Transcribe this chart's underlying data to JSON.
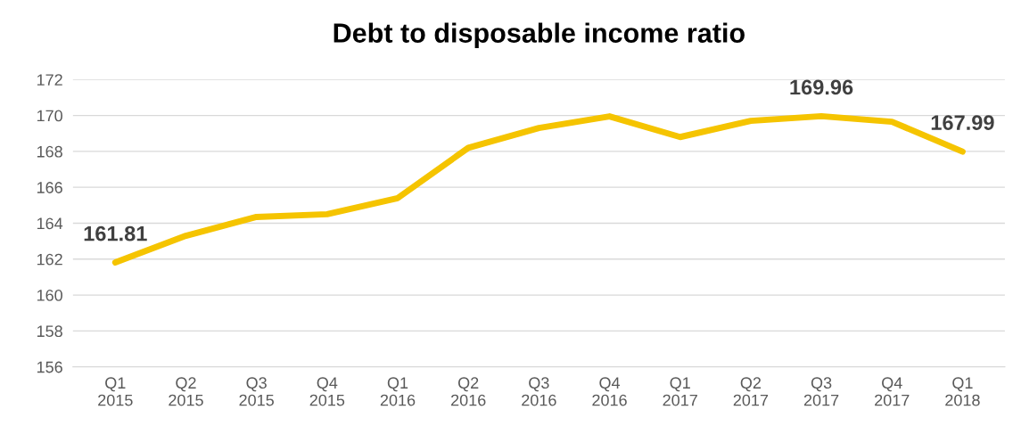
{
  "chart_data": {
    "type": "line",
    "title": "Debt to disposable income ratio",
    "categories": [
      "Q1\n2015",
      "Q2\n2015",
      "Q3\n2015",
      "Q4\n2015",
      "Q1\n2016",
      "Q2\n2016",
      "Q3\n2016",
      "Q4\n2016",
      "Q1\n2017",
      "Q2\n2017",
      "Q3\n2017",
      "Q4\n2017",
      "Q1\n2018"
    ],
    "series": [
      {
        "color": "#f5c400",
        "values": [
          161.81,
          163.3,
          164.35,
          164.5,
          165.4,
          168.2,
          169.3,
          169.95,
          168.8,
          169.7,
          169.96,
          169.65,
          167.99
        ],
        "value_labels": [
          "161.81",
          null,
          null,
          null,
          null,
          null,
          null,
          null,
          null,
          null,
          "169.96",
          null,
          "167.99"
        ]
      }
    ],
    "ylim": [
      156,
      172
    ],
    "yticks": [
      156,
      158,
      160,
      162,
      164,
      166,
      168,
      170,
      172
    ],
    "grid": "y",
    "legend": false,
    "marker": "none",
    "line_style": "solid"
  }
}
